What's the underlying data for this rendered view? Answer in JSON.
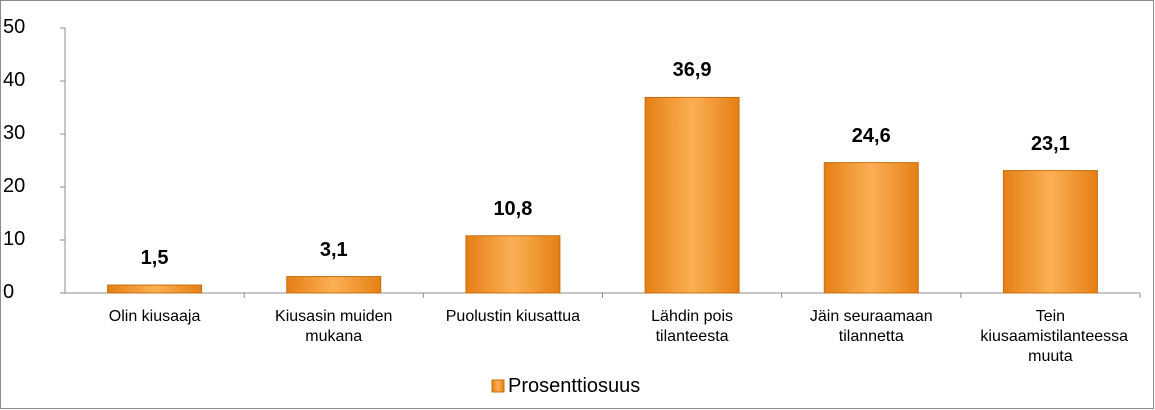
{
  "chart_data": {
    "type": "bar",
    "categories": [
      "Olin kiusaaja",
      "Kiusasin muiden mukana",
      "Puolustin kiusattua",
      "Lähdin pois tilanteesta",
      "Jäin seuraamaan tilannetta",
      "Tein kiusaamistilanteessa muuta"
    ],
    "series": [
      {
        "name": "Prosenttiosuus",
        "color": "#f39a2e",
        "values": [
          1.5,
          3.1,
          10.8,
          36.9,
          24.6,
          23.1
        ],
        "value_labels": [
          "1,5",
          "3,1",
          "10,8",
          "36,9",
          "24,6",
          "23,1"
        ]
      }
    ],
    "ylim": [
      0,
      50
    ],
    "yticks": [
      0,
      10,
      20,
      30,
      40,
      50
    ],
    "legend": "bottom"
  }
}
